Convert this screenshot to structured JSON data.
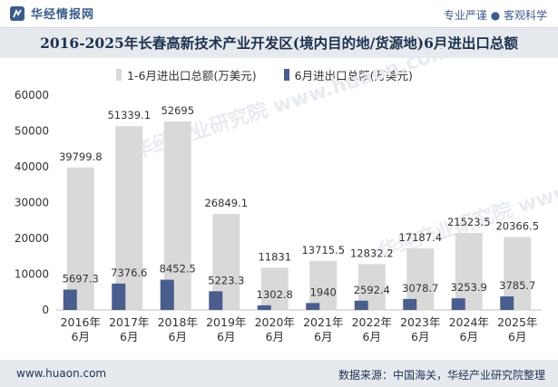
{
  "header": {
    "brand": "华经情报网",
    "tagline": "专业严谨 ● 客观科学"
  },
  "colors": {
    "series1": "#d9d9d9",
    "series2": "#4a5e8d",
    "title_bg": "#e6eaef",
    "brand": "#3b5b8c"
  },
  "watermark": "华经产业研究院 www.huaon.com",
  "chart_data": {
    "type": "bar",
    "title": "2016-2025年长春高新技术产业开发区(境内目的地/货源地)6月进出口总额",
    "categories": [
      "2016年\n6月",
      "2017年\n6月",
      "2018年\n6月",
      "2019年\n6月",
      "2020年\n6月",
      "2021年\n6月",
      "2022年\n6月",
      "2023年\n6月",
      "2024年\n6月",
      "2025年\n6月"
    ],
    "series": [
      {
        "name": "1-6月进出口总额(万美元)",
        "values": [
          39799.8,
          51339.1,
          52695,
          26849.1,
          11831,
          13715.5,
          12832.2,
          17187.4,
          21523.5,
          20366.5
        ],
        "labels": [
          "39799.8",
          "51339.1",
          "52695",
          "26849.1",
          "11831",
          "13715.5",
          "12832.2",
          "17187.4",
          "21523.5",
          "20366.5"
        ]
      },
      {
        "name": "6月进出口总额(万美元)",
        "values": [
          5697.3,
          7376.6,
          8452.5,
          5223.3,
          1302.8,
          1940,
          2592.4,
          3078.7,
          3253.9,
          3785.7
        ],
        "labels": [
          "5697.3",
          "7376.6",
          "8452.5",
          "5223.3",
          "1302.8",
          "1940",
          "2592.4",
          "3078.7",
          "3253.9",
          "3785.7"
        ]
      }
    ],
    "ylim": [
      0,
      60000
    ],
    "yticks": [
      "0",
      "10000",
      "20000",
      "30000",
      "40000",
      "50000",
      "60000"
    ],
    "legend": "top",
    "grid": false
  },
  "footer": {
    "url": "www.huaon.com",
    "source": "数据来源：中国海关，华经产业研究院整理"
  }
}
